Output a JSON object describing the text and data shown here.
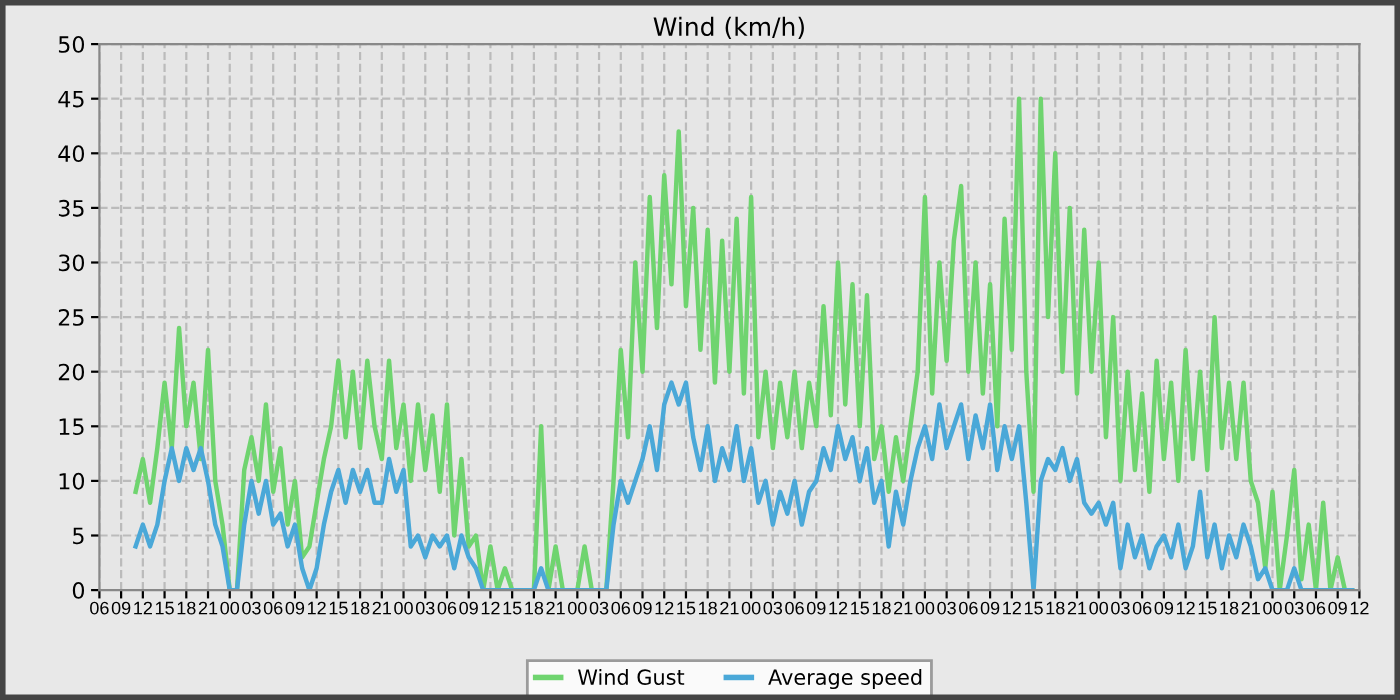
{
  "chart_data": {
    "type": "line",
    "title": "Wind (km/h)",
    "x": [
      11,
      12,
      13,
      14,
      15,
      16,
      17,
      18,
      19,
      20,
      21,
      22,
      23,
      24,
      25,
      26,
      27,
      28,
      29,
      30,
      31,
      32,
      33,
      34,
      35,
      36,
      37,
      38,
      39,
      40,
      41,
      42,
      43,
      44,
      45,
      46,
      47,
      48,
      49,
      50,
      51,
      52,
      53,
      54,
      55,
      56,
      57,
      58,
      59,
      60,
      61,
      62,
      63,
      64,
      65,
      66,
      67,
      68,
      69,
      70,
      71,
      72,
      73,
      74,
      75,
      76,
      77,
      78,
      79,
      80,
      81,
      82,
      83,
      84,
      85,
      86,
      87,
      88,
      89,
      90,
      91,
      92,
      93,
      94,
      95,
      96,
      97,
      98,
      99,
      100,
      101,
      102,
      103,
      104,
      105,
      106,
      107,
      108,
      109,
      110,
      111,
      112,
      113,
      114,
      115,
      116,
      117,
      118,
      119,
      120,
      121,
      122,
      123,
      124,
      125,
      126,
      127,
      128,
      129,
      130,
      131,
      132,
      133,
      134,
      135,
      136,
      137,
      138,
      139,
      140,
      141,
      142,
      143,
      144,
      145,
      146,
      147,
      148,
      149,
      150,
      151,
      152,
      153,
      154,
      155,
      156,
      157,
      158,
      159,
      160,
      161,
      162,
      163,
      164,
      165,
      166,
      167,
      168,
      169,
      170,
      171,
      172,
      173,
      174,
      175,
      176,
      177,
      178,
      179
    ],
    "series": [
      {
        "name": "Wind Gust",
        "color": "#6fd46f",
        "values": [
          9,
          12,
          8,
          13,
          19,
          13,
          24,
          15,
          19,
          12,
          22,
          10,
          6,
          0,
          0,
          11,
          14,
          10,
          17,
          9,
          13,
          6,
          10,
          3,
          4,
          8,
          12,
          15,
          21,
          14,
          20,
          13,
          21,
          15,
          12,
          21,
          13,
          17,
          10,
          17,
          11,
          16,
          9,
          17,
          5,
          12,
          4,
          5,
          0,
          4,
          0,
          2,
          0,
          0,
          0,
          0,
          15,
          0,
          4,
          0,
          0,
          0,
          4,
          0,
          0,
          0,
          10,
          22,
          14,
          30,
          20,
          36,
          24,
          38,
          28,
          42,
          26,
          35,
          22,
          33,
          19,
          32,
          20,
          34,
          18,
          36,
          14,
          20,
          13,
          19,
          14,
          20,
          13,
          19,
          15,
          26,
          16,
          30,
          17,
          28,
          15,
          27,
          12,
          15,
          9,
          14,
          10,
          15,
          20,
          36,
          18,
          30,
          21,
          32,
          37,
          20,
          30,
          18,
          28,
          15,
          34,
          22,
          45,
          20,
          9,
          45,
          25,
          40,
          20,
          35,
          18,
          33,
          20,
          30,
          14,
          25,
          10,
          20,
          11,
          18,
          9,
          21,
          12,
          19,
          10,
          22,
          12,
          20,
          11,
          25,
          13,
          19,
          12,
          19,
          10,
          8,
          2,
          9,
          0,
          5,
          11,
          1,
          6,
          0,
          8,
          0,
          3,
          0,
          0
        ]
      },
      {
        "name": "Average speed",
        "color": "#4aa8d8",
        "values": [
          4,
          6,
          4,
          6,
          10,
          13,
          10,
          13,
          11,
          13,
          10,
          6,
          4,
          0,
          0,
          6,
          10,
          7,
          10,
          6,
          7,
          4,
          6,
          2,
          0,
          2,
          6,
          9,
          11,
          8,
          11,
          9,
          11,
          8,
          8,
          12,
          9,
          11,
          4,
          5,
          3,
          5,
          4,
          5,
          2,
          5,
          3,
          2,
          0,
          0,
          0,
          0,
          0,
          0,
          0,
          0,
          2,
          0,
          0,
          0,
          0,
          0,
          0,
          0,
          0,
          0,
          6,
          10,
          8,
          10,
          12,
          15,
          11,
          17,
          19,
          17,
          19,
          14,
          11,
          15,
          10,
          13,
          11,
          15,
          10,
          13,
          8,
          10,
          6,
          9,
          7,
          10,
          6,
          9,
          10,
          13,
          11,
          15,
          12,
          14,
          10,
          13,
          8,
          10,
          4,
          9,
          6,
          10,
          13,
          15,
          12,
          17,
          13,
          15,
          17,
          12,
          16,
          13,
          17,
          11,
          15,
          12,
          15,
          8,
          0,
          10,
          12,
          11,
          13,
          10,
          12,
          8,
          7,
          8,
          6,
          8,
          2,
          6,
          3,
          5,
          2,
          4,
          5,
          3,
          6,
          2,
          4,
          9,
          3,
          6,
          2,
          5,
          3,
          6,
          4,
          1,
          2,
          0,
          0,
          0,
          2,
          0,
          0,
          0,
          0,
          0,
          0,
          0,
          0
        ]
      }
    ],
    "xlim": [
      6,
      180
    ],
    "xticks": [
      {
        "value": 6,
        "label": "06"
      },
      {
        "value": 9,
        "label": "09"
      },
      {
        "value": 12,
        "label": "12"
      },
      {
        "value": 15,
        "label": "15"
      },
      {
        "value": 18,
        "label": "18"
      },
      {
        "value": 21,
        "label": "21"
      },
      {
        "value": 24,
        "label": "00"
      },
      {
        "value": 27,
        "label": "03"
      },
      {
        "value": 30,
        "label": "06"
      },
      {
        "value": 33,
        "label": "09"
      },
      {
        "value": 36,
        "label": "12"
      },
      {
        "value": 39,
        "label": "15"
      },
      {
        "value": 42,
        "label": "18"
      },
      {
        "value": 45,
        "label": "21"
      },
      {
        "value": 48,
        "label": "00"
      },
      {
        "value": 51,
        "label": "03"
      },
      {
        "value": 54,
        "label": "06"
      },
      {
        "value": 57,
        "label": "09"
      },
      {
        "value": 60,
        "label": "12"
      },
      {
        "value": 63,
        "label": "15"
      },
      {
        "value": 66,
        "label": "18"
      },
      {
        "value": 69,
        "label": "21"
      },
      {
        "value": 72,
        "label": "00"
      },
      {
        "value": 75,
        "label": "03"
      },
      {
        "value": 78,
        "label": "06"
      },
      {
        "value": 81,
        "label": "09"
      },
      {
        "value": 84,
        "label": "12"
      },
      {
        "value": 87,
        "label": "15"
      },
      {
        "value": 90,
        "label": "18"
      },
      {
        "value": 93,
        "label": "21"
      },
      {
        "value": 96,
        "label": "00"
      },
      {
        "value": 99,
        "label": "03"
      },
      {
        "value": 102,
        "label": "06"
      },
      {
        "value": 105,
        "label": "09"
      },
      {
        "value": 108,
        "label": "12"
      },
      {
        "value": 111,
        "label": "15"
      },
      {
        "value": 114,
        "label": "18"
      },
      {
        "value": 117,
        "label": "21"
      },
      {
        "value": 120,
        "label": "00"
      },
      {
        "value": 123,
        "label": "03"
      },
      {
        "value": 126,
        "label": "06"
      },
      {
        "value": 129,
        "label": "09"
      },
      {
        "value": 132,
        "label": "12"
      },
      {
        "value": 135,
        "label": "15"
      },
      {
        "value": 138,
        "label": "18"
      },
      {
        "value": 141,
        "label": "21"
      },
      {
        "value": 144,
        "label": "00"
      },
      {
        "value": 147,
        "label": "03"
      },
      {
        "value": 150,
        "label": "06"
      },
      {
        "value": 153,
        "label": "09"
      },
      {
        "value": 156,
        "label": "12"
      },
      {
        "value": 159,
        "label": "15"
      },
      {
        "value": 162,
        "label": "18"
      },
      {
        "value": 165,
        "label": "21"
      },
      {
        "value": 168,
        "label": "00"
      },
      {
        "value": 171,
        "label": "03"
      },
      {
        "value": 174,
        "label": "06"
      },
      {
        "value": 177,
        "label": "09"
      },
      {
        "value": 180,
        "label": "12"
      }
    ],
    "ylim": [
      0,
      50
    ],
    "yticks": [
      0,
      5,
      10,
      15,
      20,
      25,
      30,
      35,
      40,
      45,
      50
    ],
    "grid": true,
    "legend": "bottom",
    "marker": "none",
    "line_style": "solid"
  }
}
